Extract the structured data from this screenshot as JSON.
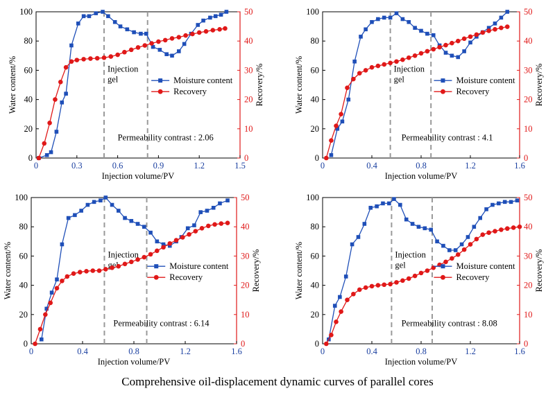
{
  "caption": "Comprehensive oil-displacement dynamic curves of parallel cores",
  "colors": {
    "moisture": "#1f4fb8",
    "recovery": "#e01818",
    "gel_line": "#999999",
    "left_axis": "#000000",
    "right_axis": "#e01818"
  },
  "chart_data": [
    {
      "type": "line",
      "xlabel": "Injection volume/PV",
      "ylabel": "Water content/%",
      "y2label": "Recovery/%",
      "xlim": [
        0,
        1.5
      ],
      "xticks": [
        0,
        0.3,
        0.6,
        0.9,
        1.2,
        1.5
      ],
      "ylim": [
        0,
        100
      ],
      "yticks": [
        0,
        20,
        40,
        60,
        80,
        100
      ],
      "y2lim": [
        0,
        50
      ],
      "y2ticks": [
        0,
        10,
        20,
        30,
        40,
        50
      ],
      "legend": "right",
      "annotation": "Injection\ngel",
      "note": "Permeability contrast : 2.06",
      "gel_lines": [
        0.5,
        0.82
      ],
      "series": [
        {
          "name": "Moisture content",
          "axis": "left",
          "marker": "square",
          "x": [
            0.02,
            0.08,
            0.11,
            0.15,
            0.19,
            0.22,
            0.26,
            0.31,
            0.35,
            0.39,
            0.44,
            0.49,
            0.53,
            0.58,
            0.62,
            0.67,
            0.72,
            0.77,
            0.81,
            0.86,
            0.91,
            0.96,
            1.0,
            1.05,
            1.09,
            1.14,
            1.19,
            1.23,
            1.28,
            1.32,
            1.36,
            1.4
          ],
          "y": [
            0,
            2,
            4,
            18,
            38,
            44,
            77,
            92,
            97,
            97,
            99,
            100,
            97,
            93,
            90,
            88,
            86,
            85,
            85,
            76,
            74,
            71,
            70,
            73,
            78,
            85,
            91,
            94,
            96,
            97,
            98,
            100
          ]
        },
        {
          "name": "Recovery",
          "axis": "right",
          "marker": "circle",
          "x": [
            0.02,
            0.06,
            0.1,
            0.14,
            0.18,
            0.22,
            0.26,
            0.3,
            0.35,
            0.4,
            0.45,
            0.5,
            0.55,
            0.6,
            0.65,
            0.7,
            0.75,
            0.8,
            0.85,
            0.9,
            0.95,
            1.0,
            1.05,
            1.1,
            1.15,
            1.2,
            1.25,
            1.3,
            1.35,
            1.39
          ],
          "y": [
            0,
            5,
            12,
            20,
            26,
            31,
            33,
            33.5,
            33.8,
            34,
            34.1,
            34.3,
            34.7,
            35.3,
            36.2,
            37,
            37.8,
            38.5,
            39.2,
            39.8,
            40.3,
            40.9,
            41.3,
            41.9,
            42.4,
            42.9,
            43.3,
            43.7,
            44,
            44.3
          ]
        }
      ]
    },
    {
      "type": "line",
      "xlabel": "Injection volume/PV",
      "ylabel": "Water content/%",
      "y2label": "Recovery/%",
      "xlim": [
        0,
        1.6
      ],
      "xticks": [
        0,
        0.4,
        0.8,
        1.2,
        1.6
      ],
      "ylim": [
        0,
        100
      ],
      "yticks": [
        0,
        20,
        40,
        60,
        80,
        100
      ],
      "y2lim": [
        0,
        50
      ],
      "y2ticks": [
        0,
        10,
        20,
        30,
        40,
        50
      ],
      "legend": "right",
      "annotation": "Injection\ngel",
      "note": "Permeability contrast : 4.1",
      "gel_lines": [
        0.55,
        0.88
      ],
      "series": [
        {
          "name": "Moisture content",
          "axis": "left",
          "marker": "square",
          "x": [
            0.07,
            0.12,
            0.16,
            0.21,
            0.26,
            0.31,
            0.35,
            0.4,
            0.45,
            0.5,
            0.55,
            0.6,
            0.65,
            0.7,
            0.75,
            0.8,
            0.85,
            0.9,
            0.95,
            1.0,
            1.05,
            1.1,
            1.15,
            1.2,
            1.25,
            1.3,
            1.35,
            1.4,
            1.45,
            1.5
          ],
          "y": [
            2,
            20,
            25,
            40,
            66,
            83,
            88,
            93,
            95,
            96,
            96,
            99,
            95,
            93,
            89,
            87,
            85,
            84,
            77,
            72,
            70,
            69,
            73,
            79,
            83,
            86,
            89,
            92,
            96,
            100
          ]
        },
        {
          "name": "Recovery",
          "axis": "right",
          "marker": "circle",
          "x": [
            0.03,
            0.07,
            0.11,
            0.15,
            0.2,
            0.25,
            0.3,
            0.35,
            0.4,
            0.45,
            0.5,
            0.55,
            0.6,
            0.65,
            0.7,
            0.75,
            0.8,
            0.85,
            0.9,
            0.95,
            1.0,
            1.05,
            1.1,
            1.15,
            1.2,
            1.25,
            1.3,
            1.35,
            1.4,
            1.45,
            1.5
          ],
          "y": [
            0,
            6,
            11,
            15,
            24,
            27,
            29,
            30,
            31,
            31.5,
            32,
            32.5,
            33,
            33.6,
            34.3,
            35,
            35.8,
            36.5,
            37.2,
            37.9,
            38.6,
            39.3,
            40,
            40.8,
            41.5,
            42.2,
            42.9,
            43.5,
            44,
            44.5,
            44.9
          ]
        }
      ]
    },
    {
      "type": "line",
      "xlabel": "Injection volume/PV",
      "ylabel": "Water content/%",
      "y2label": "Recovery/%",
      "xlim": [
        0,
        1.6
      ],
      "xticks": [
        0,
        0.4,
        0.8,
        1.2,
        1.6
      ],
      "ylim": [
        0,
        100
      ],
      "yticks": [
        0,
        20,
        40,
        60,
        80,
        100
      ],
      "y2lim": [
        0,
        50
      ],
      "y2ticks": [
        0,
        10,
        20,
        30,
        40,
        50
      ],
      "legend": "right",
      "annotation": "Injection\ngel",
      "note": "Permeability contrast : 6.14",
      "gel_lines": [
        0.57,
        0.9
      ],
      "series": [
        {
          "name": "Moisture content",
          "axis": "left",
          "marker": "square",
          "x": [
            0.08,
            0.12,
            0.16,
            0.2,
            0.24,
            0.29,
            0.34,
            0.39,
            0.44,
            0.49,
            0.54,
            0.58,
            0.63,
            0.68,
            0.73,
            0.78,
            0.83,
            0.88,
            0.93,
            0.98,
            1.03,
            1.08,
            1.13,
            1.17,
            1.22,
            1.27,
            1.32,
            1.37,
            1.42,
            1.47,
            1.53
          ],
          "y": [
            3,
            24,
            35,
            44,
            68,
            86,
            88,
            91,
            95,
            97,
            98,
            100,
            95,
            91,
            86,
            84,
            82,
            80,
            76,
            70,
            68,
            67,
            70,
            73,
            79,
            81,
            90,
            91,
            93,
            96,
            98
          ]
        },
        {
          "name": "Recovery",
          "axis": "right",
          "marker": "circle",
          "x": [
            0.03,
            0.07,
            0.11,
            0.15,
            0.2,
            0.24,
            0.28,
            0.33,
            0.38,
            0.43,
            0.48,
            0.53,
            0.58,
            0.63,
            0.68,
            0.73,
            0.78,
            0.83,
            0.88,
            0.93,
            0.98,
            1.03,
            1.08,
            1.13,
            1.18,
            1.23,
            1.28,
            1.33,
            1.38,
            1.43,
            1.48,
            1.53
          ],
          "y": [
            0,
            5,
            10,
            14,
            19,
            21.5,
            23,
            24,
            24.5,
            24.8,
            25,
            25,
            25.5,
            26,
            26.5,
            27.3,
            28,
            28.8,
            29.6,
            30.6,
            31.8,
            33,
            34.3,
            35.4,
            36.4,
            37.4,
            38.5,
            39.5,
            40.3,
            40.8,
            41.1,
            41.3
          ]
        }
      ]
    },
    {
      "type": "line",
      "xlabel": "Injection volume/PV",
      "ylabel": "Water content/%",
      "y2label": "Recovery/%",
      "xlim": [
        0,
        1.6
      ],
      "xticks": [
        0,
        0.4,
        0.8,
        1.2,
        1.6
      ],
      "ylim": [
        0,
        100
      ],
      "yticks": [
        0,
        20,
        40,
        60,
        80,
        100
      ],
      "y2lim": [
        0,
        50
      ],
      "y2ticks": [
        0,
        10,
        20,
        30,
        40,
        50
      ],
      "legend": "right",
      "annotation": "Injection\ngel",
      "note": "Permeability contrast : 8.08",
      "gel_lines": [
        0.56,
        0.89
      ],
      "series": [
        {
          "name": "Moisture content",
          "axis": "left",
          "marker": "square",
          "x": [
            0.05,
            0.1,
            0.14,
            0.19,
            0.24,
            0.29,
            0.34,
            0.39,
            0.44,
            0.49,
            0.54,
            0.58,
            0.63,
            0.68,
            0.73,
            0.78,
            0.83,
            0.88,
            0.93,
            0.98,
            1.03,
            1.08,
            1.13,
            1.18,
            1.23,
            1.28,
            1.33,
            1.38,
            1.43,
            1.48,
            1.53,
            1.58
          ],
          "y": [
            3,
            26,
            32,
            46,
            68,
            73,
            82,
            93,
            94,
            96,
            96,
            99,
            95,
            85,
            82,
            80,
            79,
            78,
            70,
            67,
            64,
            64,
            68,
            73,
            80,
            86,
            92,
            95,
            96,
            97,
            97,
            98
          ]
        },
        {
          "name": "Recovery",
          "axis": "right",
          "marker": "circle",
          "x": [
            0.03,
            0.07,
            0.11,
            0.15,
            0.2,
            0.25,
            0.3,
            0.35,
            0.4,
            0.45,
            0.5,
            0.55,
            0.6,
            0.65,
            0.7,
            0.75,
            0.8,
            0.85,
            0.9,
            0.95,
            1.0,
            1.05,
            1.1,
            1.15,
            1.2,
            1.25,
            1.3,
            1.35,
            1.4,
            1.45,
            1.5,
            1.55,
            1.6
          ],
          "y": [
            0,
            3,
            7.5,
            11,
            15,
            17,
            18.5,
            19.2,
            19.7,
            20,
            20.2,
            20.4,
            21,
            21.6,
            22.3,
            23.2,
            24.2,
            25,
            26,
            27,
            28,
            29.2,
            30.5,
            32.2,
            34,
            35.8,
            37.3,
            38,
            38.5,
            39,
            39.4,
            39.7,
            40
          ]
        }
      ]
    }
  ]
}
